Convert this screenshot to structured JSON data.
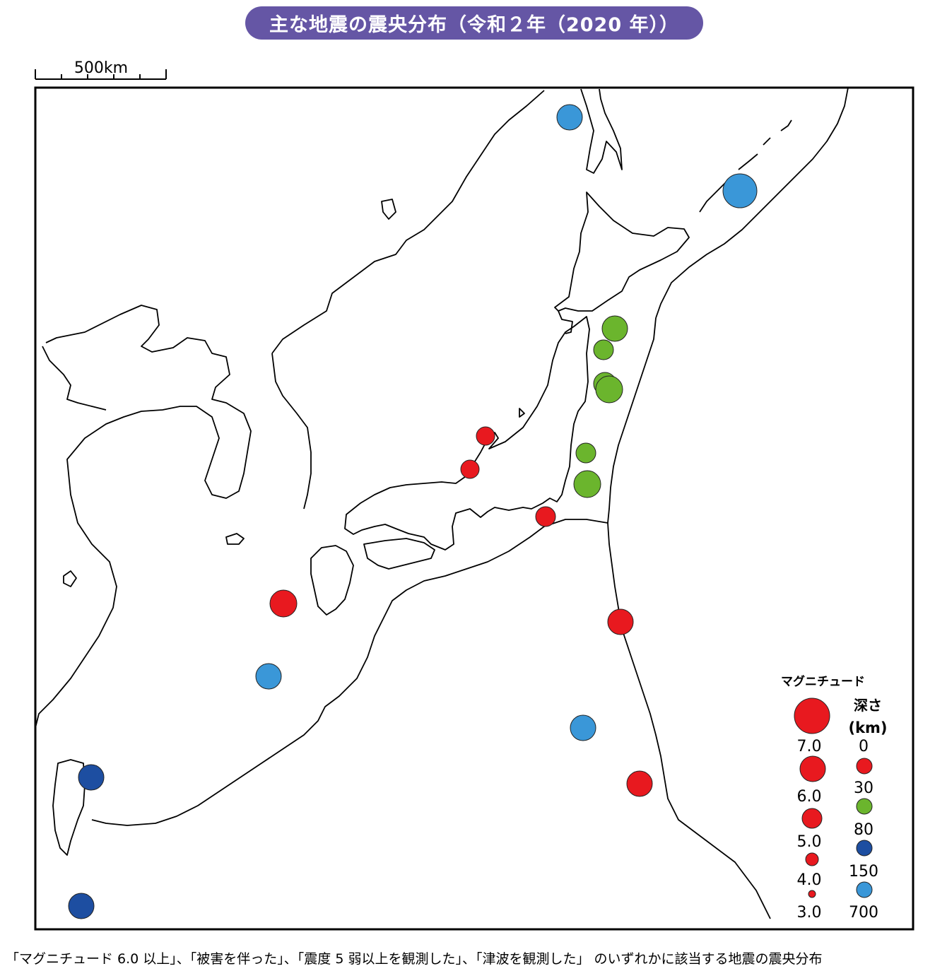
{
  "title": "主な地震の震央分布（令和２年（2020 年））",
  "scale_bar": {
    "label": "500km"
  },
  "caption": "「マグニチュード 6.0 以上」、「被害を伴った」、「震度 5 弱以上を観測した」、「津波を観測した」 のいずれかに該当する地震の震央分布",
  "legend": {
    "magnitude_title": "マグニチュード",
    "magnitudes": [
      "7.0",
      "6.0",
      "5.0",
      "4.0",
      "3.0"
    ],
    "depth_title": "深さ",
    "depth_unit": "(km)",
    "depths": [
      "0",
      "30",
      "80",
      "150",
      "700"
    ],
    "depth_colors": [
      "#e8191f",
      "#6bb52d",
      "#1d4ea1",
      "#3a97d8"
    ]
  },
  "colors": {
    "title_bg": "#6556a5",
    "shallow": "#e8191f",
    "mid": "#6bb52d",
    "deep": "#1d4ea1",
    "very_deep": "#3a97d8"
  }
}
